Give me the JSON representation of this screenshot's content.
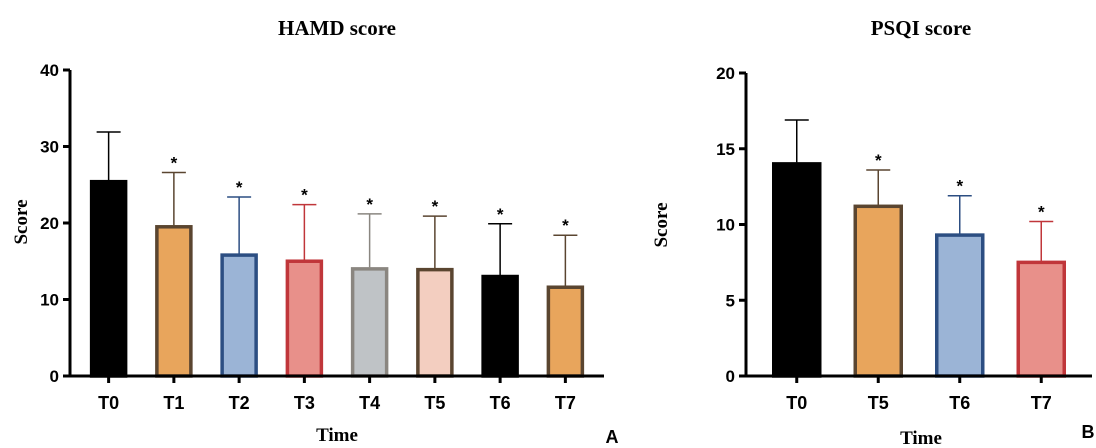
{
  "chart_data": [
    {
      "type": "bar",
      "title": "HAMD score",
      "xlabel": "Time",
      "ylabel": "Score",
      "panel_label": "A",
      "ylim": [
        0,
        40
      ],
      "yticks": [
        0,
        10,
        20,
        30,
        40
      ],
      "categories": [
        "T0",
        "T1",
        "T2",
        "T3",
        "T4",
        "T5",
        "T6",
        "T7"
      ],
      "values": [
        25.6,
        19.7,
        16.0,
        15.2,
        14.2,
        14.1,
        13.2,
        11.8
      ],
      "error_upper": [
        31.9,
        26.6,
        23.4,
        22.4,
        21.2,
        20.9,
        19.9,
        18.4
      ],
      "significant": [
        false,
        true,
        true,
        true,
        true,
        true,
        true,
        true
      ],
      "significance_marker": "*",
      "fills": [
        "#000000",
        "#E8A55C",
        "#9BB4D6",
        "#E8908A",
        "#BFC3C6",
        "#F3CEC0",
        "#000000",
        "#E8A55C"
      ],
      "edges": [
        "#000000",
        "#5A4530",
        "#2C4E82",
        "#C0363A",
        "#8A8680",
        "#5A4530",
        "#000000",
        "#5A4530"
      ]
    },
    {
      "type": "bar",
      "title": "PSQI score",
      "xlabel": "Time",
      "ylabel": "Score",
      "panel_label": "B",
      "ylim": [
        0,
        20
      ],
      "yticks": [
        0,
        5,
        10,
        15,
        20
      ],
      "categories": [
        "T0",
        "T5",
        "T6",
        "T7"
      ],
      "values": [
        14.1,
        11.3,
        9.4,
        7.6
      ],
      "error_upper": [
        16.9,
        13.6,
        11.9,
        10.2
      ],
      "significant": [
        false,
        true,
        true,
        true
      ],
      "significance_marker": "*",
      "fills": [
        "#000000",
        "#E8A55C",
        "#9BB4D6",
        "#E8908A"
      ],
      "edges": [
        "#000000",
        "#5A4530",
        "#2C4E82",
        "#C0363A"
      ]
    }
  ]
}
